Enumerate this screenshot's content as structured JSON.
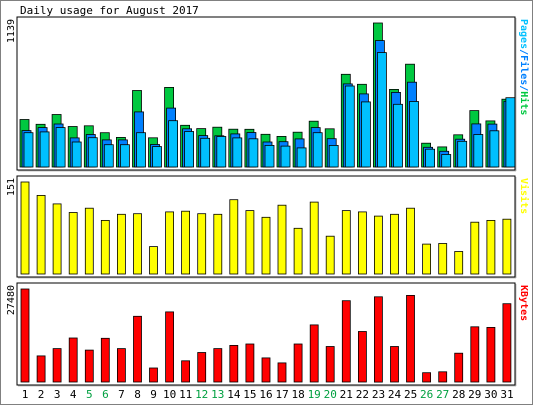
{
  "chart_data": [
    {
      "type": "bar",
      "title": "Daily usage for August 2017",
      "panel": "hits-files-pages",
      "ymax_label": "1139",
      "ylim": [
        0,
        1139
      ],
      "categories": [
        "1",
        "2",
        "3",
        "4",
        "5",
        "6",
        "7",
        "8",
        "9",
        "10",
        "11",
        "12",
        "13",
        "14",
        "15",
        "16",
        "17",
        "18",
        "19",
        "20",
        "21",
        "22",
        "23",
        "24",
        "25",
        "26",
        "27",
        "28",
        "29",
        "30",
        "31"
      ],
      "weekend_days": [
        "5",
        "6",
        "12",
        "13",
        "19",
        "20",
        "26",
        "27"
      ],
      "series": [
        {
          "name": "Hits",
          "color": "#00c840",
          "values": [
            376,
            338,
            415,
            320,
            326,
            271,
            234,
            605,
            231,
            630,
            330,
            304,
            315,
            299,
            298,
            259,
            242,
            275,
            362,
            302,
            733,
            654,
            1139,
            614,
            813,
            188,
            159,
            255,
            446,
            365,
            536
          ]
        },
        {
          "name": "Files",
          "color": "#0080ff",
          "values": [
            288,
            312,
            340,
            230,
            257,
            214,
            214,
            436,
            178,
            466,
            302,
            248,
            247,
            262,
            273,
            198,
            200,
            222,
            312,
            224,
            657,
            578,
            1000,
            590,
            671,
            156,
            124,
            220,
            341,
            339,
            520
          ]
        },
        {
          "name": "Pages",
          "color": "#00c0ff",
          "values": [
            271,
            278,
            312,
            198,
            232,
            176,
            176,
            271,
            161,
            366,
            281,
            227,
            241,
            230,
            223,
            171,
            165,
            151,
            271,
            171,
            641,
            515,
            905,
            496,
            518,
            141,
            99,
            203,
            257,
            286,
            548
          ]
        }
      ],
      "axis_title_parts": [
        {
          "text": "Pages",
          "color": "#00c0ff"
        },
        {
          "text": "/",
          "color": "#0080ff"
        },
        {
          "text": "Files",
          "color": "#0080ff"
        },
        {
          "text": "/",
          "color": "#0080ff"
        },
        {
          "text": "Hits",
          "color": "#00c840"
        }
      ]
    },
    {
      "type": "bar",
      "panel": "visits",
      "ymax_label": "151",
      "ylim": [
        0,
        151
      ],
      "categories": [
        "1",
        "2",
        "3",
        "4",
        "5",
        "6",
        "7",
        "8",
        "9",
        "10",
        "11",
        "12",
        "13",
        "14",
        "15",
        "16",
        "17",
        "18",
        "19",
        "20",
        "21",
        "22",
        "23",
        "24",
        "25",
        "26",
        "27",
        "28",
        "29",
        "30",
        "31"
      ],
      "series": [
        {
          "name": "Visits",
          "color": "#ffff00",
          "values": [
            151,
            129,
            115,
            101,
            108,
            88,
            98,
            99,
            45,
            102,
            103,
            99,
            98,
            122,
            104,
            93,
            113,
            75,
            118,
            62,
            104,
            102,
            95,
            98,
            108,
            49,
            50,
            37,
            85,
            88,
            90
          ]
        }
      ],
      "axis_title_parts": [
        {
          "text": "Visits",
          "color": "#ffff00"
        }
      ]
    },
    {
      "type": "bar",
      "panel": "kbytes",
      "ymax_label": "27480",
      "ylim": [
        0,
        27480
      ],
      "categories": [
        "1",
        "2",
        "3",
        "4",
        "5",
        "6",
        "7",
        "8",
        "9",
        "10",
        "11",
        "12",
        "13",
        "14",
        "15",
        "16",
        "17",
        "18",
        "19",
        "20",
        "21",
        "22",
        "23",
        "24",
        "25",
        "26",
        "27",
        "28",
        "29",
        "30",
        "31"
      ],
      "series": [
        {
          "name": "KBytes",
          "color": "#ff0000",
          "values": [
            27480,
            7720,
            9880,
            12990,
            9420,
            12900,
            9880,
            19400,
            4130,
            20700,
            6260,
            8710,
            9880,
            10800,
            11240,
            7130,
            5640,
            11240,
            16880,
            10490,
            24020,
            14930,
            25190,
            10490,
            25600,
            2750,
            3000,
            8500,
            16300,
            16130,
            23140
          ]
        }
      ],
      "axis_title_parts": [
        {
          "text": "KBytes",
          "color": "#ff0000"
        }
      ]
    }
  ]
}
